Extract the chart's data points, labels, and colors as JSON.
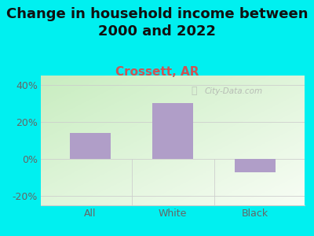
{
  "categories": [
    "All",
    "White",
    "Black"
  ],
  "values": [
    14,
    30,
    -7
  ],
  "bar_color": "#b09ec8",
  "title": "Change in household income between\n2000 and 2022",
  "subtitle": "Crossett, AR",
  "subtitle_color": "#cc5555",
  "title_color": "#111111",
  "title_fontsize": 13,
  "subtitle_fontsize": 11,
  "background_color": "#00f0f0",
  "ylim": [
    -25,
    45
  ],
  "yticks": [
    -20,
    0,
    20,
    40
  ],
  "ytick_labels": [
    "-20%",
    "0%",
    "20%",
    "40%"
  ],
  "watermark": "City-Data.com",
  "tick_color": "#666666",
  "grid_color": "#cccccc",
  "plot_left_color": "#c8edc0",
  "plot_right_color": "#f5f5f0"
}
